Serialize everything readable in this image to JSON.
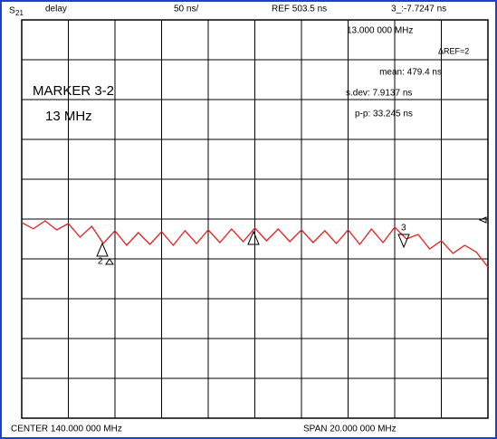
{
  "header": {
    "param": "S",
    "param_sub": "21",
    "format": "delay",
    "scale": "50 ns/",
    "ref": "REF 503.5 ns",
    "marker_readout": "3_:-7.7247 ns"
  },
  "readout": {
    "freq": "13.000 000 MHz",
    "ref_marker": "ΔREF=2",
    "mean": "mean: 479.4 ns",
    "sdev": "s.dev: 7.9137 ns",
    "pp": "p-p: 33.245 ns"
  },
  "annotation": {
    "line1": "MARKER 3-2",
    "line2": "13 MHz"
  },
  "markers": {
    "m2": "2",
    "m3": "3"
  },
  "footer": {
    "center": "CENTER  140.000 000 MHz",
    "span": "SPAN  20.000 000 MHz"
  },
  "chart_data": {
    "type": "line",
    "color": "#e02020",
    "xlim": [
      130,
      150
    ],
    "ylim": [
      253.5,
      753.5
    ],
    "x": [
      130,
      130.5,
      131,
      131.5,
      132,
      132.5,
      133,
      133.5,
      134,
      134.5,
      135,
      135.5,
      136,
      136.5,
      137,
      137.5,
      138,
      138.5,
      139,
      139.5,
      140,
      140.5,
      141,
      141.5,
      142,
      142.5,
      143,
      143.5,
      144,
      144.5,
      145,
      145.5,
      146,
      146.5,
      147,
      147.5,
      148,
      148.5,
      149,
      149.5,
      150
    ],
    "values": [
      499.1,
      491.2,
      501.2,
      489.9,
      497.8,
      480.8,
      494.4,
      472.8,
      488.8,
      470.6,
      486.5,
      471.7,
      487.6,
      470.6,
      488.8,
      472.8,
      489.9,
      473.9,
      491.0,
      475.1,
      492.2,
      476.2,
      491.0,
      475.1,
      489.9,
      473.9,
      488.8,
      472.8,
      490.0,
      471.7,
      491.0,
      474.0,
      493.3,
      478.5,
      484.2,
      466.0,
      476.2,
      460.4,
      470.6,
      462.0,
      443.3
    ]
  }
}
